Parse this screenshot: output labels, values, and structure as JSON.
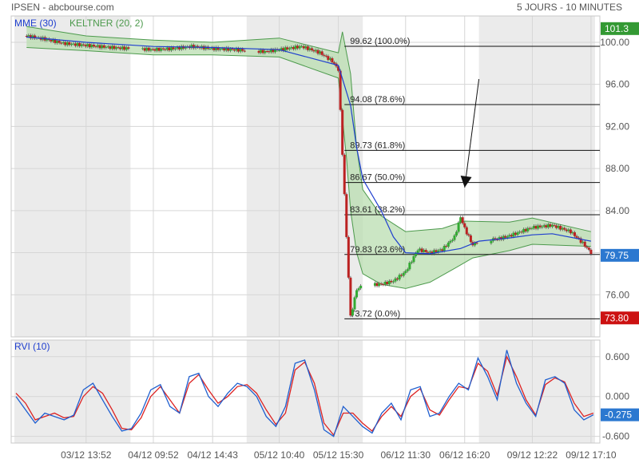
{
  "header": {
    "title": "IPSEN - abcbourse.com",
    "period": "5 JOURS - 10 MINUTES"
  },
  "colors": {
    "up": "#33aa33",
    "down": "#bb2222",
    "keltner_fill": "#b9ddb0",
    "keltner_line": "#4d9a4d",
    "mme_line": "#1f3fcf",
    "rvi_main": "#1f5fcf",
    "rvi_signal": "#dd2222",
    "shade": "#ebebeb",
    "badge_blue": "#2b78d0",
    "badge_green": "#339933",
    "badge_red": "#cc1111"
  },
  "chart_data": [
    {
      "type": "line",
      "title": "IPSEN",
      "subtitle": "",
      "ylim": [
        72.0,
        102.5
      ],
      "y_ticks": [
        "76.00",
        "80.00",
        "84.00",
        "88.00",
        "92.00",
        "96.00",
        "100.00"
      ],
      "y_tick_values": [
        76,
        80,
        84,
        88,
        92,
        96,
        100
      ],
      "x_ticks": [
        "03/12 13:52",
        "04/12 09:52",
        "04/12 14:43",
        "05/12 10:40",
        "05/12 15:30",
        "06/12 11:30",
        "06/12 16:20",
        "09/12 12:22",
        "09/12 17:10"
      ],
      "sessions": [
        "03/12",
        "04/12",
        "05/12",
        "06/12",
        "09/12"
      ],
      "legend": [
        {
          "name": "MME (30)",
          "color": "#1f3fcf"
        },
        {
          "name": "KELTNER (20, 2)",
          "color": "#4d9a4d"
        }
      ],
      "series": [
        {
          "name": "Close",
          "points": [
            [
              "03/12 09:00",
              100.6
            ],
            [
              "03/12 10:30",
              100.3
            ],
            [
              "03/12 12:00",
              99.9
            ],
            [
              "03/12 13:52",
              99.7
            ],
            [
              "03/12 16:00",
              99.5
            ],
            [
              "03/12 17:30",
              99.4
            ],
            [
              "04/12 09:52",
              99.3
            ],
            [
              "04/12 11:30",
              99.4
            ],
            [
              "04/12 13:00",
              99.6
            ],
            [
              "04/12 14:43",
              99.4
            ],
            [
              "04/12 16:30",
              99.3
            ],
            [
              "04/12 17:30",
              99.2
            ],
            [
              "05/12 09:30",
              99.1
            ],
            [
              "05/12 10:40",
              99.3
            ],
            [
              "05/12 12:30",
              99.6
            ],
            [
              "05/12 14:00",
              99.0
            ],
            [
              "05/12 15:00",
              98.2
            ],
            [
              "05/12 15:30",
              97.4
            ],
            [
              "05/12 16:10",
              81.5
            ],
            [
              "05/12 16:30",
              73.9
            ],
            [
              "05/12 17:00",
              76.5
            ],
            [
              "05/12 17:30",
              76.9
            ],
            [
              "06/12 09:30",
              77.0
            ],
            [
              "06/12 10:30",
              77.3
            ],
            [
              "06/12 11:30",
              78.2
            ],
            [
              "06/12 12:30",
              80.3
            ],
            [
              "06/12 13:30",
              80.0
            ],
            [
              "06/12 14:30",
              80.3
            ],
            [
              "06/12 15:30",
              81.5
            ],
            [
              "06/12 16:00",
              83.4
            ],
            [
              "06/12 16:20",
              82.3
            ],
            [
              "06/12 17:00",
              80.7
            ],
            [
              "06/12 17:30",
              81.2
            ],
            [
              "09/12 09:30",
              81.3
            ],
            [
              "09/12 10:30",
              81.6
            ],
            [
              "09/12 12:22",
              82.4
            ],
            [
              "09/12 14:00",
              82.6
            ],
            [
              "09/12 15:30",
              82.0
            ],
            [
              "09/12 16:30",
              80.9
            ],
            [
              "09/12 17:10",
              80.0
            ]
          ]
        },
        {
          "name": "MME (30)",
          "points": [
            [
              "03/12 09:00",
              100.5
            ],
            [
              "03/12 13:52",
              100.0
            ],
            [
              "04/12 09:52",
              99.6
            ],
            [
              "04/12 14:43",
              99.5
            ],
            [
              "05/12 10:40",
              99.3
            ],
            [
              "05/12 15:30",
              97.8
            ],
            [
              "05/12 16:30",
              94.0
            ],
            [
              "05/12 17:00",
              90.0
            ],
            [
              "05/12 17:30",
              87.0
            ],
            [
              "06/12 09:30",
              84.0
            ],
            [
              "06/12 10:30",
              81.5
            ],
            [
              "06/12 11:30",
              80.0
            ],
            [
              "06/12 13:30",
              79.9
            ],
            [
              "06/12 16:00",
              80.4
            ],
            [
              "06/12 17:30",
              81.1
            ],
            [
              "09/12 10:30",
              81.4
            ],
            [
              "09/12 12:22",
              81.7
            ],
            [
              "09/12 14:00",
              81.8
            ],
            [
              "09/12 17:10",
              81.1
            ]
          ]
        },
        {
          "name": "KELTNER upper",
          "points": [
            [
              "03/12 09:00",
              101.5
            ],
            [
              "03/12 13:52",
              100.6
            ],
            [
              "04/12 09:52",
              100.2
            ],
            [
              "04/12 14:43",
              100.0
            ],
            [
              "05/12 10:40",
              100.4
            ],
            [
              "05/12 15:30",
              99.0
            ],
            [
              "05/12 15:50",
              101.0
            ],
            [
              "05/12 16:30",
              97.0
            ],
            [
              "05/12 17:00",
              90.0
            ],
            [
              "05/12 17:30",
              86.0
            ],
            [
              "06/12 09:30",
              83.5
            ],
            [
              "06/12 11:30",
              82.0
            ],
            [
              "06/12 14:30",
              82.3
            ],
            [
              "06/12 16:20",
              83.0
            ],
            [
              "09/12 10:30",
              82.9
            ],
            [
              "09/12 12:22",
              83.3
            ],
            [
              "09/12 17:10",
              82.0
            ]
          ]
        },
        {
          "name": "KELTNER lower",
          "points": [
            [
              "03/12 09:00",
              99.5
            ],
            [
              "03/12 13:52",
              99.2
            ],
            [
              "04/12 09:52",
              98.8
            ],
            [
              "04/12 14:43",
              98.8
            ],
            [
              "05/12 10:40",
              98.6
            ],
            [
              "05/12 15:30",
              96.6
            ],
            [
              "05/12 16:10",
              89.0
            ],
            [
              "05/12 16:30",
              84.0
            ],
            [
              "05/12 17:00",
              80.0
            ],
            [
              "05/12 17:30",
              78.0
            ],
            [
              "06/12 09:30",
              77.0
            ],
            [
              "06/12 11:30",
              76.6
            ],
            [
              "06/12 13:30",
              77.2
            ],
            [
              "06/12 15:30",
              78.5
            ],
            [
              "06/12 17:00",
              79.5
            ],
            [
              "09/12 10:30",
              80.2
            ],
            [
              "09/12 12:22",
              80.8
            ],
            [
              "09/12 17:10",
              80.6
            ]
          ]
        }
      ],
      "fibonacci": [
        {
          "label": "99.62  (100.0%)",
          "value": 99.62
        },
        {
          "label": "94.08  (78.6%)",
          "value": 94.08
        },
        {
          "label": "89.73  (61.8%)",
          "value": 89.73
        },
        {
          "label": "86.67  (50.0%)",
          "value": 86.67
        },
        {
          "label": "83.61  (38.2%)",
          "value": 83.61
        },
        {
          "label": "79.83  (23.6%)",
          "value": 79.83
        },
        {
          "label": "73.72  (0.0%)",
          "value": 73.72
        }
      ],
      "price_badges": [
        {
          "label": "101.3",
          "value": 101.3,
          "color": "#339933"
        },
        {
          "label": "79.75",
          "value": 79.75,
          "color": "#2b78d0"
        },
        {
          "label": "73.80",
          "value": 73.8,
          "color": "#cc1111"
        }
      ],
      "annotations": [
        {
          "type": "arrow",
          "from": [
            "06/12 17:30",
            96.5
          ],
          "to": [
            "06/12 16:20",
            86.2
          ]
        }
      ]
    },
    {
      "type": "line",
      "title": "RVI (10)",
      "ylim": [
        -0.7,
        0.85
      ],
      "y_ticks": [
        "0.600",
        "0.000",
        "-0.600"
      ],
      "y_tick_values": [
        0.6,
        0.0,
        -0.6
      ],
      "current_value": {
        "label": "-0.275",
        "value": -0.275
      },
      "series": [
        {
          "name": "RVI",
          "values": [
            0.0,
            -0.2,
            -0.4,
            -0.25,
            -0.3,
            -0.35,
            -0.28,
            0.1,
            0.2,
            -0.05,
            -0.3,
            -0.52,
            -0.48,
            -0.25,
            0.1,
            0.18,
            -0.15,
            -0.25,
            0.3,
            0.35,
            0.0,
            -0.15,
            0.05,
            0.2,
            0.15,
            0.0,
            -0.3,
            -0.45,
            -0.15,
            0.5,
            0.55,
            0.1,
            -0.5,
            -0.6,
            -0.15,
            -0.3,
            -0.45,
            -0.55,
            -0.25,
            -0.1,
            -0.35,
            0.1,
            0.15,
            -0.3,
            -0.25,
            0.0,
            0.2,
            0.1,
            0.58,
            0.3,
            -0.05,
            0.7,
            0.2,
            -0.1,
            -0.3,
            0.25,
            0.3,
            0.2,
            -0.2,
            -0.35,
            -0.275
          ]
        },
        {
          "name": "Signal",
          "values": [
            0.05,
            -0.1,
            -0.35,
            -0.3,
            -0.25,
            -0.32,
            -0.3,
            0.0,
            0.15,
            0.05,
            -0.2,
            -0.48,
            -0.5,
            -0.32,
            0.0,
            0.15,
            -0.05,
            -0.25,
            0.2,
            0.33,
            0.1,
            -0.1,
            0.0,
            0.15,
            0.18,
            0.05,
            -0.2,
            -0.42,
            -0.25,
            0.4,
            0.52,
            0.2,
            -0.4,
            -0.58,
            -0.25,
            -0.25,
            -0.4,
            -0.52,
            -0.3,
            -0.15,
            -0.3,
            0.0,
            0.12,
            -0.2,
            -0.28,
            -0.05,
            0.15,
            0.12,
            0.5,
            0.38,
            0.02,
            0.6,
            0.3,
            -0.05,
            -0.28,
            0.18,
            0.28,
            0.22,
            -0.1,
            -0.3,
            -0.25
          ]
        }
      ]
    }
  ]
}
